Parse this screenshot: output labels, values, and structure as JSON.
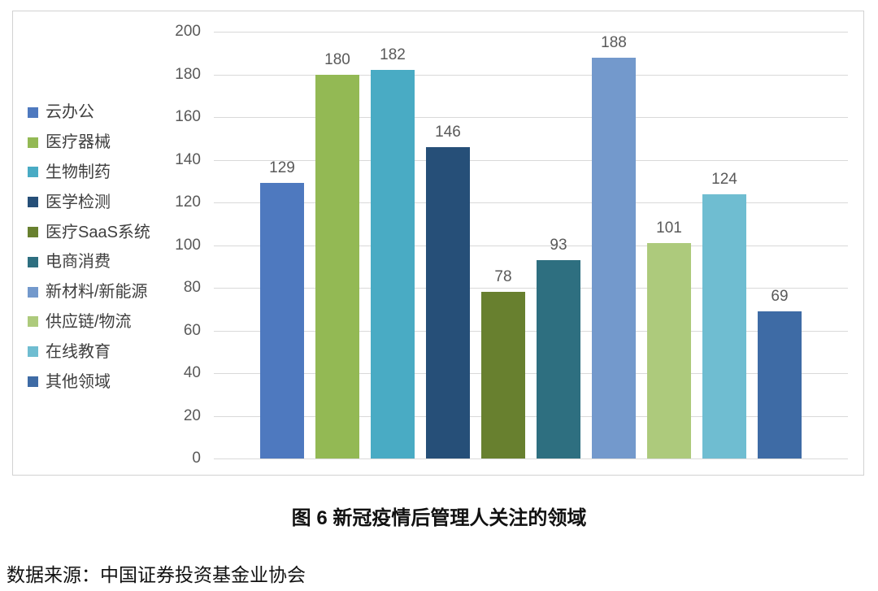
{
  "chart_data": {
    "type": "bar",
    "categories": [
      "云办公",
      "医疗器械",
      "生物制药",
      "医学检测",
      "医疗SaaS系统",
      "电商消费",
      "新材料/新能源",
      "供应链/物流",
      "在线教育",
      "其他领域"
    ],
    "values": [
      129,
      180,
      182,
      146,
      78,
      93,
      188,
      101,
      124,
      69
    ],
    "colors": [
      "#4E79BF",
      "#93B954",
      "#49ABC4",
      "#264F78",
      "#68802F",
      "#2E6F80",
      "#7399CC",
      "#ADCA7C",
      "#6FBDD1",
      "#3E6BA5"
    ],
    "title": "图 6 新冠疫情后管理人关注的领域",
    "xlabel": "",
    "ylabel": "",
    "ylim": [
      0,
      200
    ],
    "ytick_step": 20,
    "grid": true,
    "legend_position": "left",
    "bar_value_labels": [
      129,
      180,
      182,
      146,
      78,
      93,
      188,
      101,
      124,
      69
    ]
  },
  "caption": {
    "text": "图 6 新冠疫情后管理人关注的领域"
  },
  "source": {
    "text": "数据来源：中国证券投资基金业协会"
  },
  "style": {
    "gridline_color": "#d9d9d9",
    "tick_label_color": "#595959",
    "value_label_color": "#595959",
    "legend_label_color": "#3f3f3f",
    "card_border_color": "#d2d2d2"
  }
}
